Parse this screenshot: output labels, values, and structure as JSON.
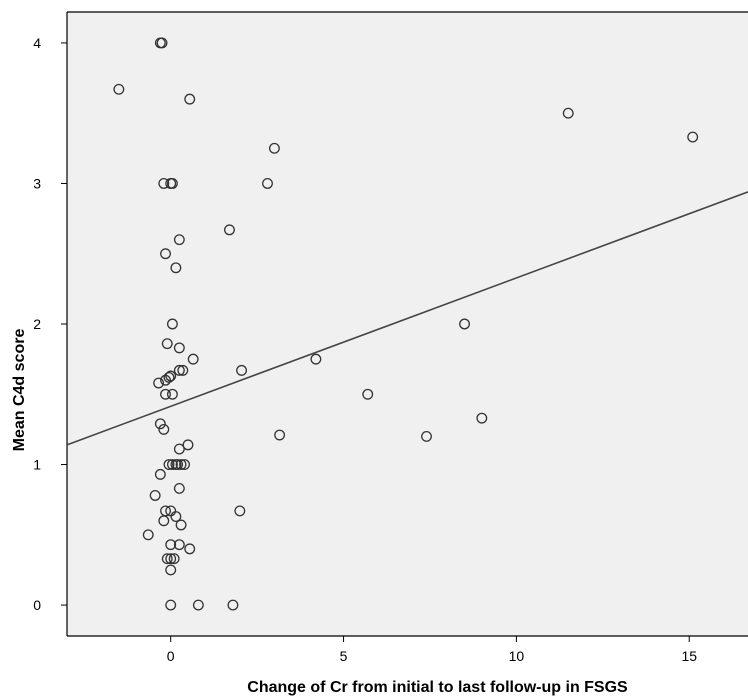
{
  "chart_data": {
    "type": "scatter",
    "xlabel": "Change of Cr from initial to last follow-up in FSGS",
    "ylabel": "Mean C4d  score",
    "xlim": [
      -3,
      16.7
    ],
    "ylim": [
      -0.22,
      4.22
    ],
    "xticks": [
      0,
      5,
      10,
      15
    ],
    "yticks": [
      0,
      1,
      2,
      3,
      4
    ],
    "grid": false,
    "legend": "none",
    "background_color": "#f0f0f0",
    "marker_color": "#333333",
    "fit_line": {
      "x": [
        -3,
        16.7
      ],
      "y": [
        1.14,
        2.94
      ]
    },
    "points": [
      {
        "x": -0.3,
        "y": 4.0
      },
      {
        "x": -0.25,
        "y": 4.0
      },
      {
        "x": -1.5,
        "y": 3.67
      },
      {
        "x": 0.55,
        "y": 3.6
      },
      {
        "x": 11.5,
        "y": 3.5
      },
      {
        "x": 15.1,
        "y": 3.33
      },
      {
        "x": 3.0,
        "y": 3.25
      },
      {
        "x": 2.8,
        "y": 3.0
      },
      {
        "x": -0.2,
        "y": 3.0
      },
      {
        "x": 0.0,
        "y": 3.0
      },
      {
        "x": 0.05,
        "y": 3.0
      },
      {
        "x": 1.7,
        "y": 2.67
      },
      {
        "x": 0.25,
        "y": 2.6
      },
      {
        "x": -0.15,
        "y": 2.5
      },
      {
        "x": 0.15,
        "y": 2.4
      },
      {
        "x": 8.5,
        "y": 2.0
      },
      {
        "x": 0.05,
        "y": 2.0
      },
      {
        "x": -0.1,
        "y": 1.86
      },
      {
        "x": 0.25,
        "y": 1.83
      },
      {
        "x": 0.65,
        "y": 1.75
      },
      {
        "x": 4.2,
        "y": 1.75
      },
      {
        "x": 0.25,
        "y": 1.67
      },
      {
        "x": 0.35,
        "y": 1.67
      },
      {
        "x": 2.05,
        "y": 1.67
      },
      {
        "x": -0.05,
        "y": 1.62
      },
      {
        "x": 0.0,
        "y": 1.63
      },
      {
        "x": -0.15,
        "y": 1.6
      },
      {
        "x": -0.35,
        "y": 1.58
      },
      {
        "x": -0.15,
        "y": 1.5
      },
      {
        "x": 0.05,
        "y": 1.5
      },
      {
        "x": 5.7,
        "y": 1.5
      },
      {
        "x": 9.0,
        "y": 1.33
      },
      {
        "x": -0.3,
        "y": 1.29
      },
      {
        "x": -0.2,
        "y": 1.25
      },
      {
        "x": 3.15,
        "y": 1.21
      },
      {
        "x": 7.4,
        "y": 1.2
      },
      {
        "x": 0.5,
        "y": 1.14
      },
      {
        "x": 0.25,
        "y": 1.11
      },
      {
        "x": -0.05,
        "y": 1.0
      },
      {
        "x": 0.05,
        "y": 1.0
      },
      {
        "x": 0.15,
        "y": 1.0
      },
      {
        "x": 0.2,
        "y": 1.0
      },
      {
        "x": 0.3,
        "y": 1.0
      },
      {
        "x": 0.4,
        "y": 1.0
      },
      {
        "x": -0.3,
        "y": 0.93
      },
      {
        "x": 0.25,
        "y": 0.83
      },
      {
        "x": -0.45,
        "y": 0.78
      },
      {
        "x": -0.15,
        "y": 0.67
      },
      {
        "x": 0.0,
        "y": 0.67
      },
      {
        "x": 2.0,
        "y": 0.67
      },
      {
        "x": 0.15,
        "y": 0.63
      },
      {
        "x": -0.2,
        "y": 0.6
      },
      {
        "x": 0.3,
        "y": 0.57
      },
      {
        "x": -0.65,
        "y": 0.5
      },
      {
        "x": 0.0,
        "y": 0.43
      },
      {
        "x": 0.25,
        "y": 0.43
      },
      {
        "x": 0.55,
        "y": 0.4
      },
      {
        "x": -0.1,
        "y": 0.33
      },
      {
        "x": 0.0,
        "y": 0.33
      },
      {
        "x": 0.1,
        "y": 0.33
      },
      {
        "x": 0.0,
        "y": 0.25
      },
      {
        "x": 0.0,
        "y": 0.0
      },
      {
        "x": 0.8,
        "y": 0.0
      },
      {
        "x": 1.8,
        "y": 0.0
      }
    ]
  }
}
